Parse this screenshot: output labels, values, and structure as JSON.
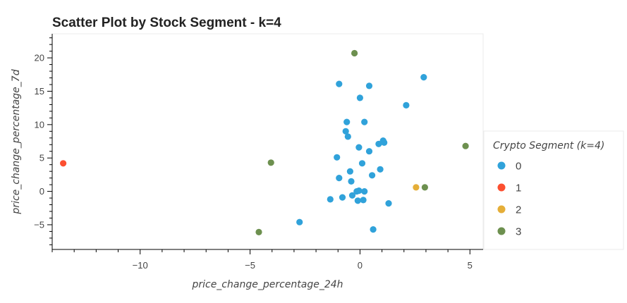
{
  "chart_data": {
    "type": "scatter",
    "title": "Scatter Plot by Stock Segment - k=4",
    "xlabel": "price_change_percentage_24h",
    "ylabel": "price_change_percentage_7d",
    "xlim": [
      -14,
      5.6
    ],
    "ylim": [
      -8.7,
      23.6
    ],
    "x_ticks": [
      -10,
      -5,
      0,
      5
    ],
    "y_ticks": [
      -5,
      0,
      5,
      10,
      15,
      20
    ],
    "x_tick_labels": [
      "−10",
      "−5",
      "0",
      "5"
    ],
    "y_tick_labels": [
      "−5",
      "0",
      "5",
      "10",
      "15",
      "20"
    ],
    "grid": false,
    "legend": {
      "title": "Crypto Segment (k=4)",
      "placement": "right",
      "entries": [
        "0",
        "1",
        "2",
        "3"
      ]
    },
    "series": [
      {
        "name": "0",
        "color": "#30a2da",
        "points": [
          [
            -0.95,
            16.1
          ],
          [
            0.42,
            15.8
          ],
          [
            2.9,
            17.1
          ],
          [
            0.0,
            14.0
          ],
          [
            2.1,
            12.9
          ],
          [
            -0.6,
            10.4
          ],
          [
            0.2,
            10.4
          ],
          [
            -0.65,
            9.0
          ],
          [
            -0.55,
            8.2
          ],
          [
            0.85,
            7.1
          ],
          [
            1.05,
            7.6
          ],
          [
            1.1,
            7.3
          ],
          [
            -0.05,
            6.6
          ],
          [
            0.42,
            6.0
          ],
          [
            -1.05,
            5.1
          ],
          [
            0.1,
            4.2
          ],
          [
            0.92,
            3.3
          ],
          [
            -0.45,
            3.0
          ],
          [
            0.55,
            2.4
          ],
          [
            -0.95,
            2.0
          ],
          [
            -0.4,
            1.5
          ],
          [
            -0.15,
            0.0
          ],
          [
            -0.05,
            0.1
          ],
          [
            0.2,
            0.0
          ],
          [
            -0.35,
            -0.6
          ],
          [
            -0.8,
            -0.9
          ],
          [
            -1.35,
            -1.2
          ],
          [
            -0.1,
            -1.4
          ],
          [
            0.15,
            -1.3
          ],
          [
            1.3,
            -1.8
          ],
          [
            -2.75,
            -4.6
          ],
          [
            0.6,
            -5.7
          ]
        ]
      },
      {
        "name": "1",
        "color": "#fc4f30",
        "points": [
          [
            -13.5,
            4.2
          ]
        ]
      },
      {
        "name": "2",
        "color": "#e5ae38",
        "points": [
          [
            2.55,
            0.6
          ]
        ]
      },
      {
        "name": "3",
        "color": "#6d904f",
        "points": [
          [
            -0.25,
            20.7
          ],
          [
            -4.05,
            4.3
          ],
          [
            4.8,
            6.8
          ],
          [
            2.95,
            0.6
          ],
          [
            -4.6,
            -6.1
          ]
        ]
      }
    ]
  }
}
